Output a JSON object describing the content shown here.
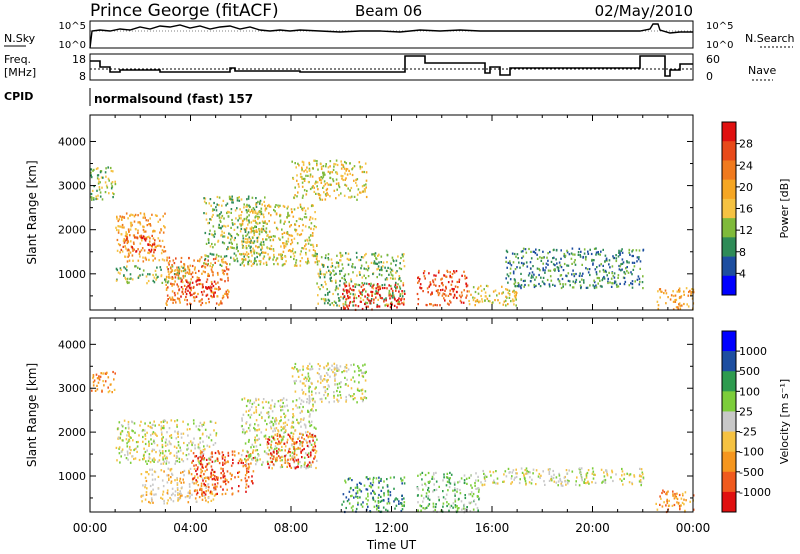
{
  "header": {
    "station": "Prince George (fitACF)",
    "beam": "Beam 06",
    "date": "02/May/2010"
  },
  "strip": {
    "nsky_label": "N.Sky",
    "nsky_ticks": [
      "10^5",
      "10^0"
    ],
    "nsearch_label": "N.Search",
    "nsearch_ticks": [
      "10^5",
      "10^0"
    ],
    "freq_label": "Freq.",
    "freq_unit": "[MHz]",
    "freq_ticks": [
      "18",
      "8"
    ],
    "nave_label": "Nave",
    "nave_ticks": [
      "60",
      "0"
    ],
    "cpid_label": "CPID",
    "cpid_value": "normalsound (fast) 157"
  },
  "colors": {
    "power": [
      "#0000ff",
      "#1d4ea0",
      "#2e8b57",
      "#7fba3a",
      "#f5c242",
      "#f5a623",
      "#f07a1e",
      "#e84a1a",
      "#e01010"
    ],
    "velocity": [
      "#e01010",
      "#f05a1e",
      "#f5961e",
      "#f5c242",
      "#c8c8c8",
      "#7ccd3a",
      "#2e9b4f",
      "#1d4ea0",
      "#0000ff"
    ]
  },
  "chart_data": [
    {
      "type": "heatmap",
      "title": "Power",
      "xlabel": "Time UT",
      "ylabel": "Slant Range [km]",
      "x_ticks": [
        "00:00",
        "04:00",
        "08:00",
        "12:00",
        "16:00",
        "20:00",
        "00:00"
      ],
      "y_ticks": [
        1000,
        2000,
        3000,
        4000
      ],
      "ylim": [
        180,
        4600
      ],
      "colorbar_label": "Power [dB]",
      "colorbar_ticks": [
        4,
        8,
        12,
        16,
        20,
        24,
        28
      ],
      "regions": [
        {
          "t": [
            0.0,
            1.0
          ],
          "r": [
            2700,
            3500
          ],
          "level": 3
        },
        {
          "t": [
            1.0,
            3.0
          ],
          "r": [
            1300,
            2400
          ],
          "level": 5
        },
        {
          "t": [
            1.2,
            2.6
          ],
          "r": [
            1500,
            1900
          ],
          "level": 7
        },
        {
          "t": [
            1.0,
            4.0
          ],
          "r": [
            800,
            1200
          ],
          "level": 3
        },
        {
          "t": [
            3.0,
            5.5
          ],
          "r": [
            300,
            1400
          ],
          "level": 6
        },
        {
          "t": [
            3.5,
            5.0
          ],
          "r": [
            500,
            900
          ],
          "level": 8
        },
        {
          "t": [
            4.5,
            7.0
          ],
          "r": [
            1200,
            2800
          ],
          "level": 3
        },
        {
          "t": [
            6.0,
            9.0
          ],
          "r": [
            1200,
            2600
          ],
          "level": 4
        },
        {
          "t": [
            8.0,
            11.0
          ],
          "r": [
            2700,
            3600
          ],
          "level": 4
        },
        {
          "t": [
            9.0,
            12.5
          ],
          "r": [
            300,
            1500
          ],
          "level": 3
        },
        {
          "t": [
            10.0,
            12.5
          ],
          "r": [
            200,
            800
          ],
          "level": 8
        },
        {
          "t": [
            13.0,
            15.0
          ],
          "r": [
            300,
            1100
          ],
          "level": 7
        },
        {
          "t": [
            15.0,
            17.0
          ],
          "r": [
            300,
            800
          ],
          "level": 4
        },
        {
          "t": [
            16.5,
            22.0
          ],
          "r": [
            700,
            1600
          ],
          "level": 2
        },
        {
          "t": [
            22.5,
            24.0
          ],
          "r": [
            200,
            700
          ],
          "level": 5
        }
      ]
    },
    {
      "type": "heatmap",
      "title": "Velocity",
      "xlabel": "Time UT",
      "ylabel": "Slant Range [km]",
      "x_ticks": [
        "00:00",
        "04:00",
        "08:00",
        "12:00",
        "16:00",
        "20:00",
        "00:00"
      ],
      "y_ticks": [
        1000,
        2000,
        3000,
        4000
      ],
      "ylim": [
        180,
        4600
      ],
      "colorbar_label": "Velocity [m s⁻¹]",
      "colorbar_ticks": [
        -1000,
        -500,
        -100,
        -25,
        25,
        100,
        500,
        1000
      ],
      "regions": [
        {
          "t": [
            0.0,
            1.0
          ],
          "r": [
            2900,
            3400
          ],
          "level": 2
        },
        {
          "t": [
            1.0,
            5.0
          ],
          "r": [
            1300,
            2300
          ],
          "level": 4
        },
        {
          "t": [
            2.0,
            5.0
          ],
          "r": [
            400,
            1200
          ],
          "level": 3
        },
        {
          "t": [
            4.0,
            6.5
          ],
          "r": [
            600,
            1600
          ],
          "level": 1
        },
        {
          "t": [
            6.0,
            9.0
          ],
          "r": [
            1200,
            2800
          ],
          "level": 4
        },
        {
          "t": [
            7.0,
            9.0
          ],
          "r": [
            1200,
            2000
          ],
          "level": 1
        },
        {
          "t": [
            8.0,
            11.0
          ],
          "r": [
            2700,
            3600
          ],
          "level": 4
        },
        {
          "t": [
            10.0,
            12.5
          ],
          "r": [
            200,
            1000
          ],
          "level": 6
        },
        {
          "t": [
            13.0,
            15.5
          ],
          "r": [
            200,
            1100
          ],
          "level": 5
        },
        {
          "t": [
            15.5,
            22.0
          ],
          "r": [
            800,
            1200
          ],
          "level": 4
        },
        {
          "t": [
            22.5,
            24.0
          ],
          "r": [
            200,
            700
          ],
          "level": 2
        }
      ]
    }
  ]
}
